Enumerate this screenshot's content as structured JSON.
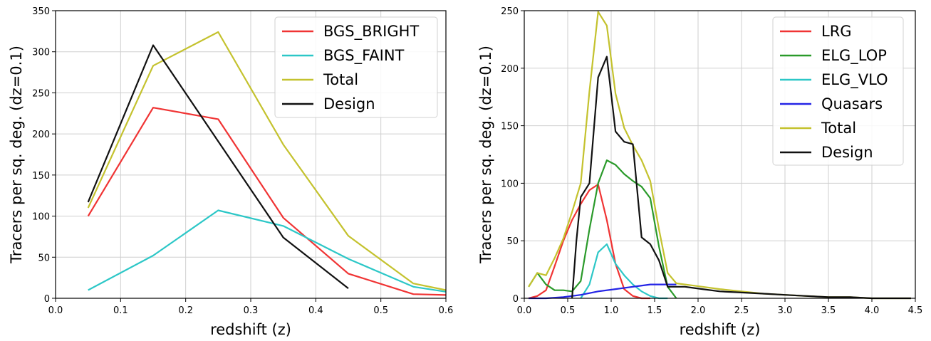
{
  "chart_data": [
    {
      "type": "line",
      "title": "",
      "xlabel": "redshift (z)",
      "ylabel": "Tracers per sq. deg. (dz=0.1)",
      "xlim": [
        0,
        0.6
      ],
      "ylim": [
        0,
        350
      ],
      "xticks": [
        "0.0",
        "0.1",
        "0.2",
        "0.3",
        "0.4",
        "0.5",
        "0.6"
      ],
      "yticks": [
        "0",
        "50",
        "100",
        "150",
        "200",
        "250",
        "300",
        "350"
      ],
      "grid": true,
      "legend_position": "top-right",
      "series": [
        {
          "name": "BGS_BRIGHT",
          "color": "#f03434",
          "x": [
            0.05,
            0.15,
            0.25,
            0.35,
            0.45,
            0.55,
            0.6
          ],
          "y": [
            100,
            232,
            218,
            98,
            30,
            5,
            4
          ]
        },
        {
          "name": "BGS_FAINT",
          "color": "#2cc7c7",
          "x": [
            0.05,
            0.15,
            0.25,
            0.35,
            0.45,
            0.55,
            0.6
          ],
          "y": [
            10,
            52,
            107,
            88,
            48,
            14,
            8
          ]
        },
        {
          "name": "Total",
          "color": "#c4c22e",
          "x": [
            0.05,
            0.15,
            0.25,
            0.35,
            0.45,
            0.55,
            0.6
          ],
          "y": [
            110,
            283,
            324,
            187,
            76,
            18,
            10
          ]
        },
        {
          "name": "Design",
          "color": "#111111",
          "x": [
            0.05,
            0.15,
            0.25,
            0.35,
            0.45
          ],
          "y": [
            117,
            308,
            191,
            74,
            12
          ]
        }
      ]
    },
    {
      "type": "line",
      "title": "",
      "xlabel": "redshift (z)",
      "ylabel": "Tracers per sq. deg. (dz=0.1)",
      "xlim": [
        0,
        4.5
      ],
      "ylim": [
        0,
        250
      ],
      "xticks": [
        "0.0",
        "0.5",
        "1.0",
        "1.5",
        "2.0",
        "2.5",
        "3.0",
        "3.5",
        "4.0",
        "4.5"
      ],
      "yticks": [
        "0",
        "50",
        "100",
        "150",
        "200",
        "250"
      ],
      "grid": true,
      "legend_position": "top-right",
      "series": [
        {
          "name": "LRG",
          "color": "#f03434",
          "x": [
            0.05,
            0.15,
            0.25,
            0.35,
            0.45,
            0.55,
            0.65,
            0.75,
            0.85,
            0.95,
            1.05,
            1.15,
            1.25,
            1.35,
            1.45
          ],
          "y": [
            0,
            2,
            7,
            28,
            50,
            68,
            82,
            94,
            99,
            68,
            30,
            8,
            2,
            0,
            0
          ]
        },
        {
          "name": "ELG_LOP",
          "color": "#2a9a2a",
          "x": [
            0.05,
            0.15,
            0.25,
            0.35,
            0.45,
            0.55,
            0.65,
            0.75,
            0.85,
            0.95,
            1.05,
            1.15,
            1.25,
            1.35,
            1.45,
            1.55,
            1.65,
            1.75
          ],
          "y": [
            10,
            22,
            12,
            7,
            7,
            6,
            15,
            60,
            100,
            120,
            116,
            108,
            102,
            97,
            87,
            45,
            10,
            0
          ]
        },
        {
          "name": "ELG_VLO",
          "color": "#2cc7c7",
          "x": [
            0.65,
            0.75,
            0.85,
            0.95,
            1.05,
            1.15,
            1.25,
            1.35,
            1.45,
            1.55,
            1.65
          ],
          "y": [
            0,
            12,
            40,
            47,
            30,
            20,
            12,
            6,
            2,
            0,
            0
          ]
        },
        {
          "name": "Quasars",
          "color": "#2424e6",
          "x": [
            0.05,
            0.25,
            0.45,
            0.65,
            0.85,
            1.05,
            1.25,
            1.45,
            1.65,
            1.75
          ],
          "y": [
            0,
            0,
            1,
            3,
            6,
            8,
            10,
            12,
            12,
            12
          ]
        },
        {
          "name": "Total",
          "color": "#c4c22e",
          "x": [
            0.05,
            0.15,
            0.25,
            0.35,
            0.45,
            0.55,
            0.65,
            0.75,
            0.85,
            0.95,
            1.05,
            1.15,
            1.25,
            1.35,
            1.45,
            1.55,
            1.65,
            1.75,
            1.85,
            1.95,
            2.05,
            2.25,
            2.5,
            2.75,
            3.0,
            3.25,
            3.5,
            3.75,
            4.0,
            4.25,
            4.45
          ],
          "y": [
            10,
            22,
            20,
            35,
            52,
            75,
            100,
            180,
            249,
            237,
            178,
            148,
            133,
            120,
            102,
            60,
            22,
            13,
            12,
            11,
            10,
            8,
            6,
            4,
            3,
            2,
            1,
            1,
            0,
            0,
            0
          ]
        },
        {
          "name": "Design",
          "color": "#111111",
          "x": [
            0.55,
            0.6,
            0.65,
            0.75,
            0.85,
            0.95,
            1.05,
            1.15,
            1.25,
            1.35,
            1.45,
            1.55,
            1.65,
            1.75,
            1.85,
            1.95,
            2.05,
            2.25,
            2.5,
            2.75,
            3.0,
            3.25,
            3.5,
            3.75,
            4.0,
            4.25,
            4.45
          ],
          "y": [
            0,
            50,
            88,
            100,
            192,
            210,
            145,
            136,
            134,
            53,
            47,
            33,
            10,
            10,
            10,
            9,
            8,
            6,
            5,
            4,
            3,
            2,
            1,
            1,
            0,
            0,
            0
          ]
        }
      ]
    }
  ]
}
